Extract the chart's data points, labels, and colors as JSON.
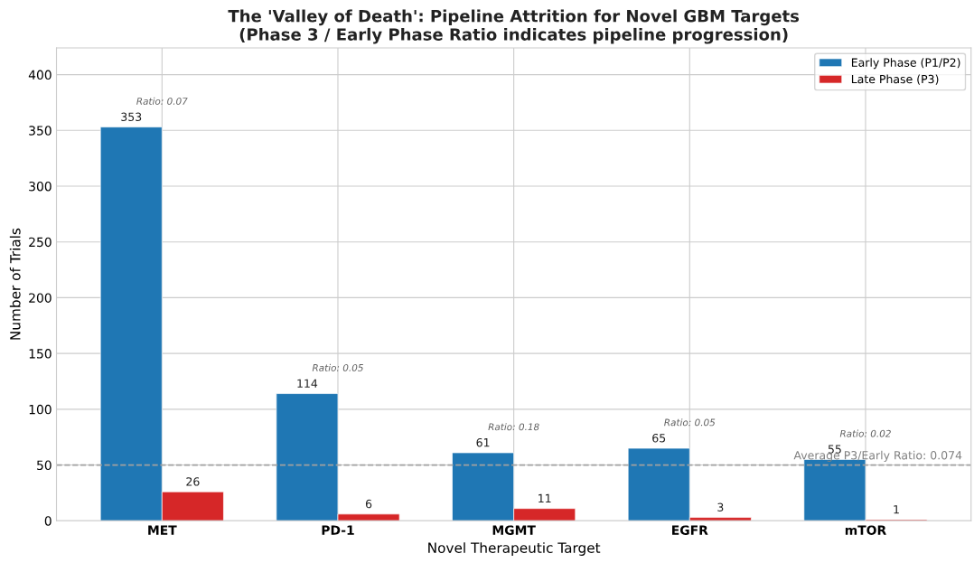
{
  "chart_data": {
    "type": "bar",
    "title": "The 'Valley of Death': Pipeline Attrition for Novel GBM Targets\n(Phase 3 / Early Phase Ratio indicates pipeline progression)",
    "xlabel": "Novel Therapeutic Target",
    "ylabel": "Number of Trials",
    "categories": [
      "MET",
      "PD-1",
      "MGMT",
      "EGFR",
      "mTOR"
    ],
    "series": [
      {
        "name": "Early Phase (P1/P2)",
        "color": "#1f77b4",
        "values": [
          353,
          114,
          61,
          65,
          55
        ]
      },
      {
        "name": "Late Phase (P3)",
        "color": "#d62728",
        "values": [
          26,
          6,
          11,
          3,
          1
        ]
      }
    ],
    "ylim": [
      0,
      424
    ],
    "yticks": [
      0,
      50,
      100,
      150,
      200,
      250,
      300,
      350,
      400
    ],
    "ref_lines": [
      {
        "axis": "y",
        "value": 50,
        "color": "#a0a0a0",
        "line_style": "dashed"
      }
    ],
    "annotations": [
      "Ratio: 0.07",
      "Ratio: 0.05",
      "Ratio: 0.18",
      "Ratio: 0.05",
      "Ratio: 0.02",
      "Average P3/Early Ratio: 0.074"
    ],
    "data_labels": true,
    "grid": true,
    "legend": "top right"
  }
}
